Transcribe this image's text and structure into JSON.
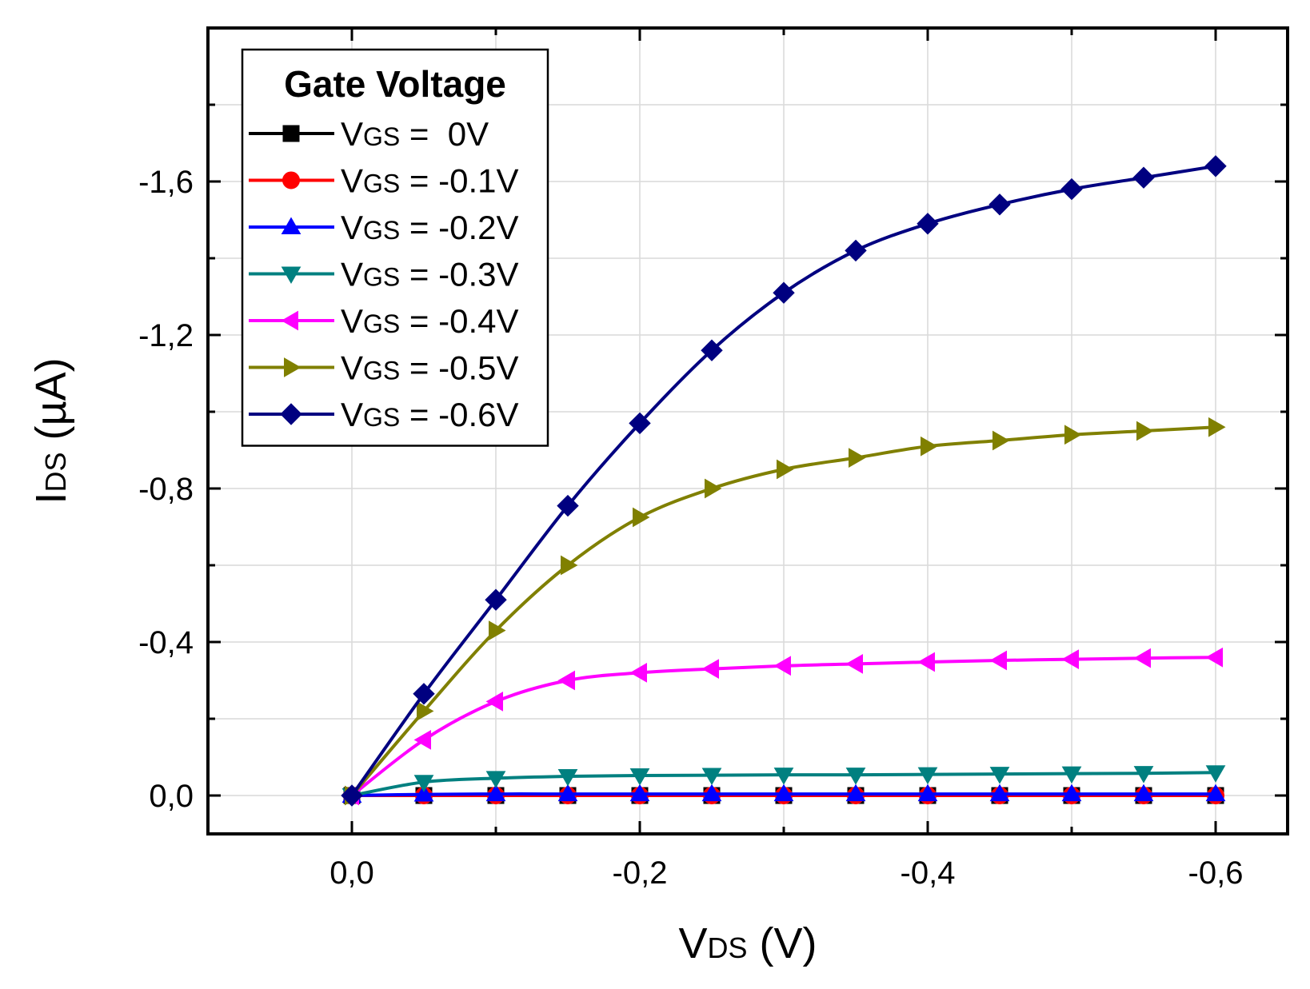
{
  "chart_data": {
    "type": "line",
    "title": "",
    "xlabel": "VDS (V)",
    "ylabel": "IDS (µA)",
    "x_title_main": "V",
    "x_title_sub": "DS",
    "x_title_unit": " (V)",
    "y_title_main": "I",
    "y_title_sub": "DS",
    "y_title_unit": " (µA)",
    "xlim": [
      0.1,
      -0.65
    ],
    "ylim": [
      0.1,
      -2.0
    ],
    "x_ticks": [
      {
        "value": 0.0,
        "label": "0,0"
      },
      {
        "value": -0.2,
        "label": "-0,2"
      },
      {
        "value": -0.4,
        "label": "-0,4"
      },
      {
        "value": -0.6,
        "label": "-0,6"
      }
    ],
    "y_ticks": [
      {
        "value": 0.0,
        "label": "0,0"
      },
      {
        "value": -0.4,
        "label": "-0,4"
      },
      {
        "value": -0.8,
        "label": "-0,8"
      },
      {
        "value": -1.2,
        "label": "-1,2"
      },
      {
        "value": -1.6,
        "label": "-1,6"
      }
    ],
    "grid": true,
    "legend": {
      "title": "Gate Voltage",
      "position": "top-left"
    },
    "x": [
      0.0,
      -0.05,
      -0.1,
      -0.15,
      -0.2,
      -0.25,
      -0.3,
      -0.35,
      -0.4,
      -0.45,
      -0.5,
      -0.55,
      -0.6
    ],
    "series": [
      {
        "name": "VGS = 0V",
        "label_main": "V",
        "label_sub": "GS",
        "label_value": " =  0V",
        "color": "#000000",
        "marker": "square",
        "values": [
          0.0,
          0.0,
          0.0,
          0.0,
          0.0,
          0.0,
          0.0,
          0.0,
          0.0,
          0.0,
          0.0,
          0.0,
          0.0
        ]
      },
      {
        "name": "VGS = -0.1V",
        "label_main": "V",
        "label_sub": "GS",
        "label_value": " = -0.1V",
        "color": "#ff0000",
        "marker": "circle",
        "values": [
          0.0,
          0.0,
          0.0,
          0.0,
          0.0,
          0.0,
          0.0,
          0.0,
          0.0,
          0.0,
          0.0,
          0.0,
          0.0
        ]
      },
      {
        "name": "VGS = -0.2V",
        "label_main": "V",
        "label_sub": "GS",
        "label_value": " = -0.2V",
        "color": "#0000ff",
        "marker": "triangle-up",
        "values": [
          0.0,
          -0.003,
          -0.004,
          -0.004,
          -0.004,
          -0.004,
          -0.004,
          -0.004,
          -0.004,
          -0.004,
          -0.004,
          -0.004,
          -0.004
        ]
      },
      {
        "name": "VGS = -0.3V",
        "label_main": "V",
        "label_sub": "GS",
        "label_value": " = -0.3V",
        "color": "#008080",
        "marker": "triangle-down",
        "values": [
          0.0,
          -0.035,
          -0.045,
          -0.05,
          -0.052,
          -0.053,
          -0.054,
          -0.054,
          -0.055,
          -0.056,
          -0.057,
          -0.058,
          -0.06
        ]
      },
      {
        "name": "VGS = -0.4V",
        "label_main": "V",
        "label_sub": "GS",
        "label_value": " = -0.4V",
        "color": "#ff00ff",
        "marker": "triangle-left",
        "values": [
          0.0,
          -0.145,
          -0.245,
          -0.3,
          -0.32,
          -0.33,
          -0.338,
          -0.343,
          -0.348,
          -0.352,
          -0.355,
          -0.358,
          -0.36
        ]
      },
      {
        "name": "VGS = -0.5V",
        "label_main": "V",
        "label_sub": "GS",
        "label_value": " = -0.5V",
        "color": "#808000",
        "marker": "triangle-right",
        "values": [
          0.0,
          -0.22,
          -0.43,
          -0.6,
          -0.725,
          -0.8,
          -0.85,
          -0.88,
          -0.91,
          -0.925,
          -0.94,
          -0.95,
          -0.96
        ]
      },
      {
        "name": "VGS = -0.6V",
        "label_main": "V",
        "label_sub": "GS",
        "label_value": " = -0.6V",
        "color": "#000080",
        "marker": "diamond",
        "values": [
          0.0,
          -0.265,
          -0.51,
          -0.755,
          -0.97,
          -1.16,
          -1.31,
          -1.42,
          -1.49,
          -1.54,
          -1.58,
          -1.61,
          -1.64
        ]
      }
    ]
  }
}
